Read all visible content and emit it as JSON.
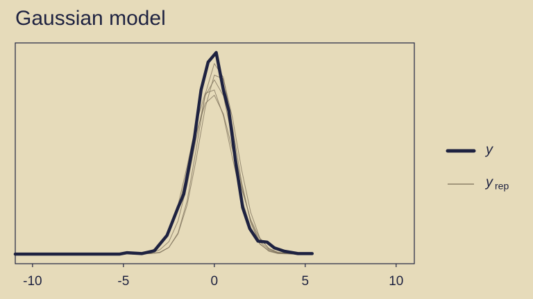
{
  "chart_data": {
    "type": "density",
    "title": "Gaussian model",
    "xlim": [
      -10.95,
      11
    ],
    "xticks": [
      -10,
      -5,
      0,
      5,
      10
    ],
    "ylim": [
      -0.02,
      0.44
    ],
    "y": {
      "name": "y",
      "color": "#1e2240",
      "x": [
        -10.95,
        -5.2,
        -4.8,
        -4.0,
        -3.3,
        -2.6,
        -2.0,
        -1.68,
        -1.1,
        -0.73,
        -0.34,
        0.1,
        0.5,
        0.8,
        1.0,
        1.2,
        1.56,
        1.95,
        2.4,
        2.9,
        3.3,
        3.85,
        4.6,
        5.38
      ],
      "values": [
        0,
        0,
        0.003,
        0.001,
        0.007,
        0.039,
        0.097,
        0.125,
        0.241,
        0.342,
        0.4,
        0.42,
        0.342,
        0.298,
        0.242,
        0.184,
        0.097,
        0.053,
        0.027,
        0.025,
        0.013,
        0.006,
        0.001,
        0.001
      ]
    },
    "yrep": {
      "name": "y",
      "subscript": "rep",
      "color": "#7a6e58",
      "x": [
        -4.5,
        -3.5,
        -3,
        -2.5,
        -2,
        -1.5,
        -1,
        -0.5,
        0,
        0.5,
        1,
        1.5,
        2,
        2.5,
        3,
        3.5,
        4.5
      ],
      "draws": [
        [
          0,
          0.002,
          0.009,
          0.026,
          0.069,
          0.144,
          0.24,
          0.33,
          0.363,
          0.33,
          0.24,
          0.144,
          0.069,
          0.026,
          0.009,
          0.002,
          0
        ],
        [
          0,
          0.001,
          0.003,
          0.014,
          0.044,
          0.111,
          0.218,
          0.333,
          0.397,
          0.368,
          0.266,
          0.15,
          0.066,
          0.022,
          0.006,
          0.001,
          0
        ],
        [
          0.001,
          0.006,
          0.018,
          0.046,
          0.095,
          0.168,
          0.251,
          0.314,
          0.331,
          0.292,
          0.218,
          0.137,
          0.072,
          0.032,
          0.012,
          0.004,
          0
        ],
        [
          0,
          0.001,
          0.004,
          0.014,
          0.042,
          0.102,
          0.197,
          0.305,
          0.373,
          0.365,
          0.284,
          0.176,
          0.087,
          0.034,
          0.011,
          0.003,
          0
        ],
        [
          0,
          0.006,
          0.018,
          0.047,
          0.102,
          0.183,
          0.272,
          0.335,
          0.342,
          0.288,
          0.2,
          0.116,
          0.055,
          0.021,
          0.007,
          0.002,
          0
        ]
      ]
    }
  }
}
